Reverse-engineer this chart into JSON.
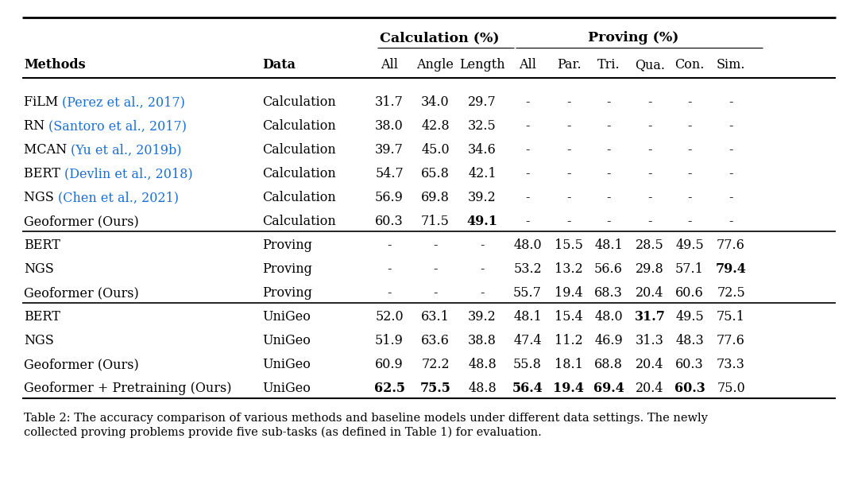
{
  "header_group1": "Calculation (%)",
  "header_group2": "Proving (%)",
  "col_headers": [
    "Methods",
    "Data",
    "All",
    "Angle",
    "Length",
    "All",
    "Par.",
    "Tri.",
    "Qua.",
    "Con.",
    "Sim."
  ],
  "rows": [
    {
      "method_black": "FiLM ",
      "method_blue": "(Perez et al., 2017)",
      "data": "Calculation",
      "vals": [
        "31.7",
        "34.0",
        "29.7",
        "-",
        "-",
        "-",
        "-",
        "-",
        "-"
      ],
      "bold_idx": []
    },
    {
      "method_black": "RN ",
      "method_blue": "(Santoro et al., 2017)",
      "data": "Calculation",
      "vals": [
        "38.0",
        "42.8",
        "32.5",
        "-",
        "-",
        "-",
        "-",
        "-",
        "-"
      ],
      "bold_idx": []
    },
    {
      "method_black": "MCAN ",
      "method_blue": "(Yu et al., 2019b)",
      "data": "Calculation",
      "vals": [
        "39.7",
        "45.0",
        "34.6",
        "-",
        "-",
        "-",
        "-",
        "-",
        "-"
      ],
      "bold_idx": []
    },
    {
      "method_black": "BERT ",
      "method_blue": "(Devlin et al., 2018)",
      "data": "Calculation",
      "vals": [
        "54.7",
        "65.8",
        "42.1",
        "-",
        "-",
        "-",
        "-",
        "-",
        "-"
      ],
      "bold_idx": []
    },
    {
      "method_black": "NGS ",
      "method_blue": "(Chen et al., 2021)",
      "data": "Calculation",
      "vals": [
        "56.9",
        "69.8",
        "39.2",
        "-",
        "-",
        "-",
        "-",
        "-",
        "-"
      ],
      "bold_idx": []
    },
    {
      "method_black": "Geoformer (Ours)",
      "method_blue": "",
      "data": "Calculation",
      "vals": [
        "60.3",
        "71.5",
        "49.1",
        "-",
        "-",
        "-",
        "-",
        "-",
        "-"
      ],
      "bold_idx": [
        2
      ]
    },
    {
      "method_black": "BERT",
      "method_blue": "",
      "data": "Proving",
      "vals": [
        "-",
        "-",
        "-",
        "48.0",
        "15.5",
        "48.1",
        "28.5",
        "49.5",
        "77.6"
      ],
      "bold_idx": []
    },
    {
      "method_black": "NGS",
      "method_blue": "",
      "data": "Proving",
      "vals": [
        "-",
        "-",
        "-",
        "53.2",
        "13.2",
        "56.6",
        "29.8",
        "57.1",
        "79.4"
      ],
      "bold_idx": [
        8
      ]
    },
    {
      "method_black": "Geoformer (Ours)",
      "method_blue": "",
      "data": "Proving",
      "vals": [
        "-",
        "-",
        "-",
        "55.7",
        "19.4",
        "68.3",
        "20.4",
        "60.6",
        "72.5"
      ],
      "bold_idx": []
    },
    {
      "method_black": "BERT",
      "method_blue": "",
      "data": "UniGeo",
      "vals": [
        "52.0",
        "63.1",
        "39.2",
        "48.1",
        "15.4",
        "48.0",
        "31.7",
        "49.5",
        "75.1"
      ],
      "bold_idx": [
        6
      ]
    },
    {
      "method_black": "NGS",
      "method_blue": "",
      "data": "UniGeo",
      "vals": [
        "51.9",
        "63.6",
        "38.8",
        "47.4",
        "11.2",
        "46.9",
        "31.3",
        "48.3",
        "77.6"
      ],
      "bold_idx": []
    },
    {
      "method_black": "Geoformer (Ours)",
      "method_blue": "",
      "data": "UniGeo",
      "vals": [
        "60.9",
        "72.2",
        "48.8",
        "55.8",
        "18.1",
        "68.8",
        "20.4",
        "60.3",
        "73.3"
      ],
      "bold_idx": []
    },
    {
      "method_black": "Geoformer + Pretraining (Ours)",
      "method_blue": "",
      "data": "UniGeo",
      "vals": [
        "62.5",
        "75.5",
        "48.8",
        "56.4",
        "19.4",
        "69.4",
        "20.4",
        "60.3",
        "75.0"
      ],
      "bold_idx": [
        0,
        1,
        3,
        4,
        5,
        7
      ]
    }
  ],
  "section_separators_before": [
    6,
    9
  ],
  "caption": "Table 2: The accuracy comparison of various methods and baseline models under different data settings. The newly\ncollected proving problems provide five sub-tasks (as defined in Table 1) for evaluation.",
  "bg_color": "#ffffff",
  "black": "#000000",
  "blue": "#1a6fd4"
}
